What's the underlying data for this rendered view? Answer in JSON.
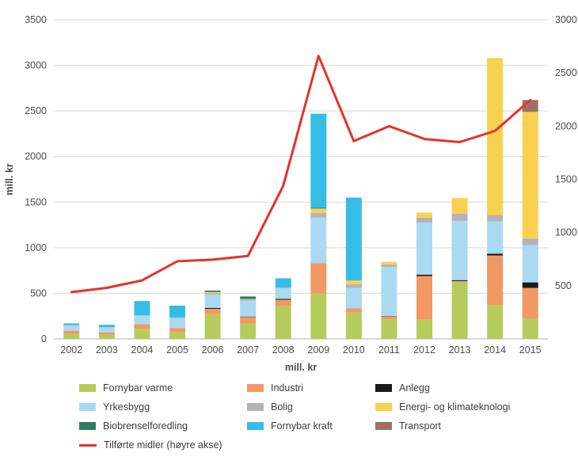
{
  "chart_data": {
    "type": "bar",
    "subtype": "stacked-bars-with-line",
    "title": "",
    "xlabel": "mill. kr",
    "ylabel_left": "mill. kr",
    "grid": true,
    "legend_position": "bottom-left",
    "categories": [
      "2002",
      "2003",
      "2004",
      "2005",
      "2006",
      "2007",
      "2008",
      "2009",
      "2010",
      "2011",
      "2012",
      "2013",
      "2014",
      "2015"
    ],
    "left_axis": {
      "min": 0,
      "max": 3500,
      "step": 500
    },
    "right_axis": {
      "min": 0,
      "max": 3000,
      "step": 500,
      "first_tick": 500
    },
    "series": [
      {
        "key": "fornybar-varme",
        "name": "Fornybar varme",
        "color": "#b5cc5c",
        "values": [
          55,
          45,
          110,
          75,
          270,
          170,
          365,
          500,
          290,
          215,
          210,
          620,
          370,
          220
        ]
      },
      {
        "key": "industri",
        "name": "Industri",
        "color": "#f29862",
        "values": [
          35,
          25,
          50,
          45,
          60,
          70,
          65,
          330,
          45,
          30,
          480,
          15,
          545,
          340
        ]
      },
      {
        "key": "anlegg",
        "name": "Anlegg",
        "color": "#1a1a1a",
        "values": [
          0,
          0,
          0,
          0,
          10,
          5,
          10,
          0,
          0,
          5,
          15,
          10,
          20,
          60
        ]
      },
      {
        "key": "yrkesbygg",
        "name": "Yrkesbygg",
        "color": "#aad9f2",
        "values": [
          55,
          55,
          95,
          110,
          145,
          175,
          115,
          500,
          225,
          540,
          570,
          650,
          355,
          410
        ]
      },
      {
        "key": "bolig",
        "name": "Bolig",
        "color": "#b3b3b8",
        "values": [
          5,
          5,
          5,
          5,
          15,
          20,
          10,
          50,
          40,
          25,
          55,
          80,
          70,
          70
        ]
      },
      {
        "key": "energi-og-klimateknologi",
        "name": "Energi- og klimateknologi",
        "color": "#fad14f",
        "values": [
          0,
          0,
          0,
          0,
          15,
          0,
          0,
          50,
          40,
          30,
          55,
          170,
          1720,
          1390
        ]
      },
      {
        "key": "biobrenselforedling",
        "name": "Biobrenselforedling",
        "color": "#2a7d5f",
        "values": [
          0,
          0,
          0,
          0,
          15,
          25,
          0,
          10,
          0,
          0,
          0,
          0,
          0,
          0
        ]
      },
      {
        "key": "fornybar-kraft",
        "name": "Fornybar kraft",
        "color": "#35bde8",
        "values": [
          20,
          25,
          155,
          130,
          0,
          0,
          100,
          1030,
          910,
          0,
          0,
          0,
          0,
          0
        ]
      },
      {
        "key": "transport",
        "name": "Transport",
        "color": "#9b7265",
        "values": [
          0,
          0,
          0,
          0,
          0,
          0,
          0,
          0,
          0,
          0,
          0,
          0,
          0,
          130
        ]
      }
    ],
    "line_series": {
      "key": "tilforte-midler",
      "name": "Tilførte midler (høyre akse)",
      "color": "#e63229",
      "axis": "right",
      "values": [
        440,
        480,
        550,
        730,
        745,
        780,
        1440,
        2660,
        1860,
        2000,
        1880,
        1850,
        1955,
        2245
      ]
    }
  },
  "style": {
    "grid_color": "#d9d9d9",
    "baseline_color": "#b3b3b3",
    "axis_text_color": "#4d4d4d",
    "legend_text_color": "#3d3d3d"
  }
}
